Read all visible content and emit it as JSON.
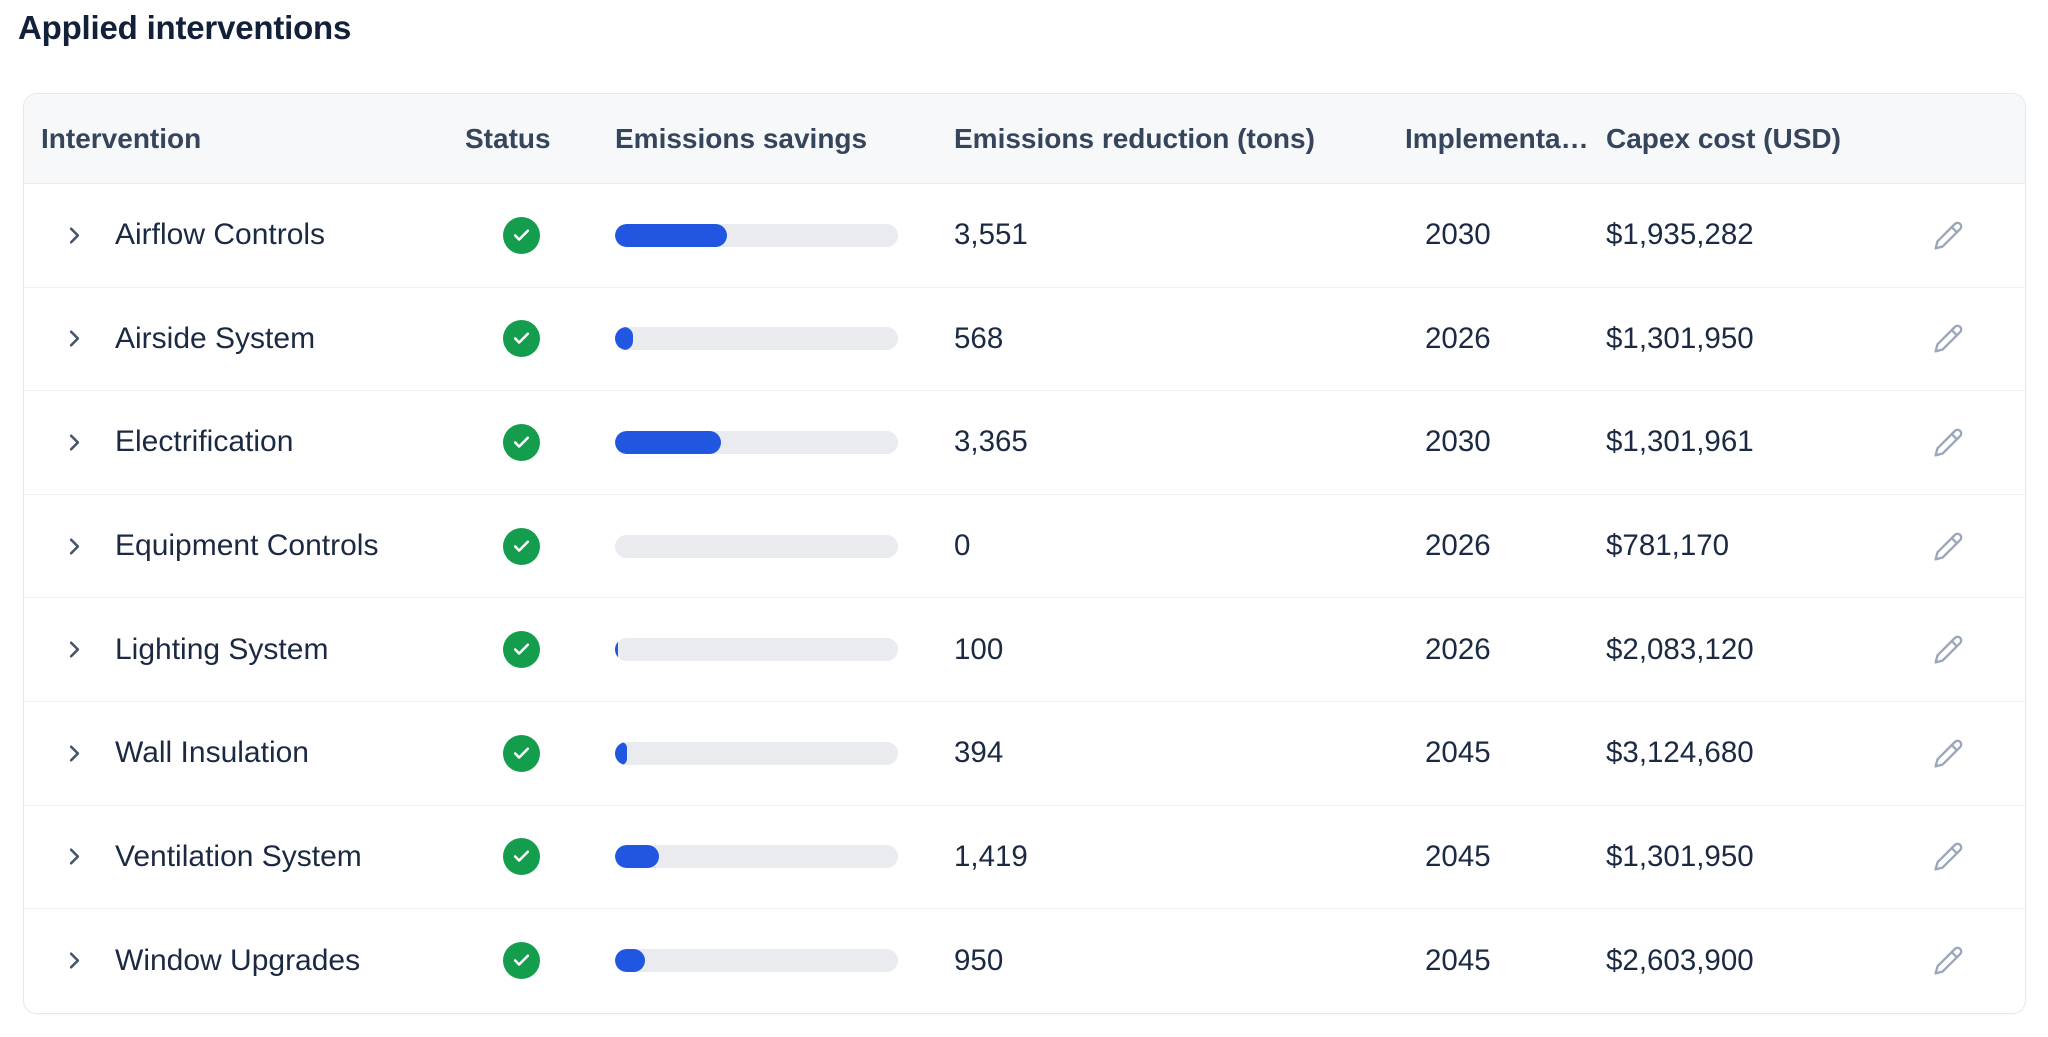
{
  "page": {
    "title": "Applied interventions"
  },
  "table": {
    "columns": [
      "Intervention",
      "Status",
      "Emissions savings",
      "Emissions reduction (tons)",
      "Implementa…",
      "Capex cost (USD)"
    ],
    "rows": [
      {
        "name": "Airflow Controls",
        "status": "complete",
        "savings_pct": 39.6,
        "reduction": "3,551",
        "year": "2030",
        "capex": "$1,935,282"
      },
      {
        "name": "Airside System",
        "status": "complete",
        "savings_pct": 6.4,
        "reduction": "568",
        "year": "2026",
        "capex": "$1,301,950"
      },
      {
        "name": "Electrification",
        "status": "complete",
        "savings_pct": 37.5,
        "reduction": "3,365",
        "year": "2030",
        "capex": "$1,301,961"
      },
      {
        "name": "Equipment Controls",
        "status": "complete",
        "savings_pct": 0,
        "reduction": "0",
        "year": "2026",
        "capex": "$781,170"
      },
      {
        "name": "Lighting System",
        "status": "complete",
        "savings_pct": 1.1,
        "reduction": "100",
        "year": "2026",
        "capex": "$2,083,120"
      },
      {
        "name": "Wall Insulation",
        "status": "complete",
        "savings_pct": 4.4,
        "reduction": "394",
        "year": "2045",
        "capex": "$3,124,680"
      },
      {
        "name": "Ventilation System",
        "status": "complete",
        "savings_pct": 15.6,
        "reduction": "1,419",
        "year": "2045",
        "capex": "$1,301,950"
      },
      {
        "name": "Window Upgrades",
        "status": "complete",
        "savings_pct": 10.6,
        "reduction": "950",
        "year": "2045",
        "capex": "$2,603,900"
      }
    ]
  },
  "icons": {
    "chevron-right-icon": "›",
    "check-circle-icon": "✓",
    "pencil-icon": "✎"
  },
  "colors": {
    "accent_blue": "#2056e0",
    "status_green": "#159d4e",
    "bar_track": "#e9ebef",
    "header_bg": "#f7f8fa",
    "text_dark": "#1b2a42",
    "pencil_gray": "#9aa6b9"
  }
}
